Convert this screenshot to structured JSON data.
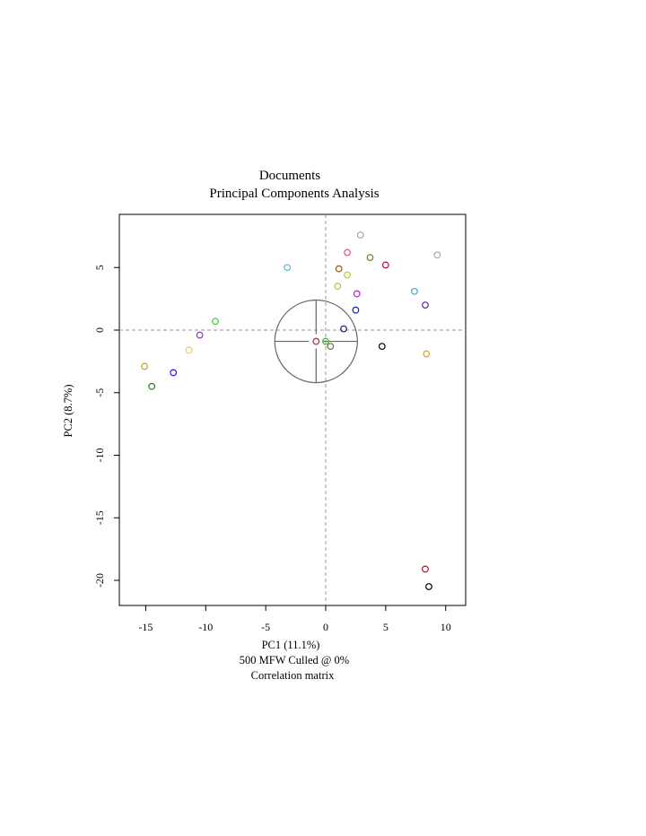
{
  "chart_data": {
    "type": "scatter",
    "title": "Documents",
    "subtitle": "Principal Components Analysis",
    "xlabel": "PC1 (11.1%)",
    "ylabel": "PC2 (8.7%)",
    "caption_lines": [
      "500 MFW  Culled @ 0%",
      "Correlation matrix"
    ],
    "xlim": [
      -17.5,
      11.5
    ],
    "ylim": [
      -22.5,
      9.5
    ],
    "xticks": [
      -15,
      -10,
      -5,
      0,
      5,
      10
    ],
    "yticks": [
      -20,
      -15,
      -10,
      -5,
      0,
      5
    ],
    "xtick_labels": [
      "-15",
      "-10",
      "-5",
      "0",
      "5",
      "10"
    ],
    "ytick_labels": [
      "-20",
      "-15",
      "-10",
      "-5",
      "0",
      "5"
    ],
    "grid": false,
    "reference_lines": {
      "x": 0,
      "y": 0,
      "style": "dashed"
    },
    "points": [
      {
        "x": 2.9,
        "y": 7.6,
        "color": "#b0a0a0"
      },
      {
        "x": 1.8,
        "y": 6.2,
        "color": "#e05070"
      },
      {
        "x": 9.3,
        "y": 6.0,
        "color": "#b0a0a0"
      },
      {
        "x": 3.7,
        "y": 5.8,
        "color": "#7a7a20"
      },
      {
        "x": 5.0,
        "y": 5.2,
        "color": "#b01040"
      },
      {
        "x": -3.2,
        "y": 5.0,
        "color": "#40c0e0"
      },
      {
        "x": 1.1,
        "y": 4.9,
        "color": "#8a5a10"
      },
      {
        "x": 1.8,
        "y": 4.4,
        "color": "#b8d020"
      },
      {
        "x": 1.0,
        "y": 3.5,
        "color": "#b8c040"
      },
      {
        "x": 7.4,
        "y": 3.1,
        "color": "#30b0d0"
      },
      {
        "x": 2.6,
        "y": 2.9,
        "color": "#b020c0"
      },
      {
        "x": 8.3,
        "y": 2.0,
        "color": "#6020a0"
      },
      {
        "x": 2.5,
        "y": 1.6,
        "color": "#1020a0"
      },
      {
        "x": 1.5,
        "y": 0.1,
        "color": "#102080"
      },
      {
        "x": -9.2,
        "y": 0.7,
        "color": "#30d030"
      },
      {
        "x": -10.5,
        "y": -0.4,
        "color": "#9030c0"
      },
      {
        "x": -0.8,
        "y": -0.9,
        "color": "#c02020"
      },
      {
        "x": 0.0,
        "y": -0.9,
        "color": "#30c030"
      },
      {
        "x": 0.4,
        "y": -1.3,
        "color": "#707030"
      },
      {
        "x": 4.7,
        "y": -1.3,
        "color": "#000000"
      },
      {
        "x": -11.4,
        "y": -1.6,
        "color": "#e8d060"
      },
      {
        "x": 8.4,
        "y": -1.9,
        "color": "#e0a020"
      },
      {
        "x": -15.1,
        "y": -2.9,
        "color": "#c0a020"
      },
      {
        "x": -12.7,
        "y": -3.4,
        "color": "#2020d0"
      },
      {
        "x": -14.5,
        "y": -4.5,
        "color": "#208020"
      },
      {
        "x": 8.3,
        "y": -19.1,
        "color": "#c01030"
      },
      {
        "x": 8.6,
        "y": -20.5,
        "color": "#000000"
      }
    ],
    "circle": {
      "cx": -0.8,
      "cy": -0.9,
      "r": 3.3
    }
  }
}
